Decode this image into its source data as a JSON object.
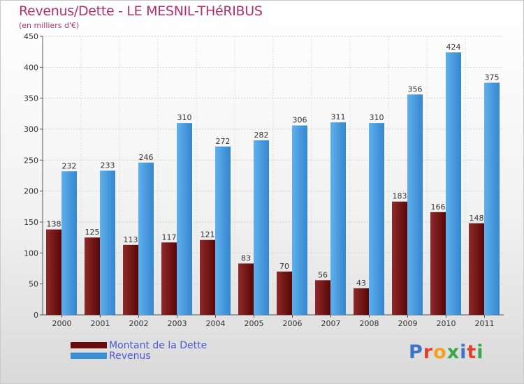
{
  "title": "Revenus/Dette - LE MESNIL-THéRIBUS",
  "subtitle": "(en milliers d'€)",
  "logo_text": "Proxiti",
  "colors": {
    "dette": "#6b0a0a",
    "revenus": "#3a8fd6",
    "title": "#b0306a",
    "legend_text": "#4a5ad0"
  },
  "chart_data": {
    "type": "bar",
    "title": "Revenus/Dette - LE MESNIL-THéRIBUS",
    "subtitle": "(en milliers d'€)",
    "categories": [
      "2000",
      "2001",
      "2002",
      "2003",
      "2004",
      "2005",
      "2006",
      "2007",
      "2008",
      "2009",
      "2010",
      "2011"
    ],
    "series": [
      {
        "name": "Montant de la Dette",
        "color": "#6b0a0a",
        "values": [
          138,
          125,
          113,
          117,
          121,
          83,
          70,
          56,
          43,
          183,
          166,
          148
        ]
      },
      {
        "name": "Revenus",
        "color": "#3a8fd6",
        "values": [
          232,
          233,
          246,
          310,
          272,
          282,
          306,
          311,
          310,
          356,
          424,
          375
        ]
      }
    ],
    "ylim": [
      0,
      450
    ],
    "yticks": [
      0,
      50,
      100,
      150,
      200,
      250,
      300,
      350,
      400,
      450
    ],
    "grid": true,
    "legend_position": "bottom-left"
  }
}
